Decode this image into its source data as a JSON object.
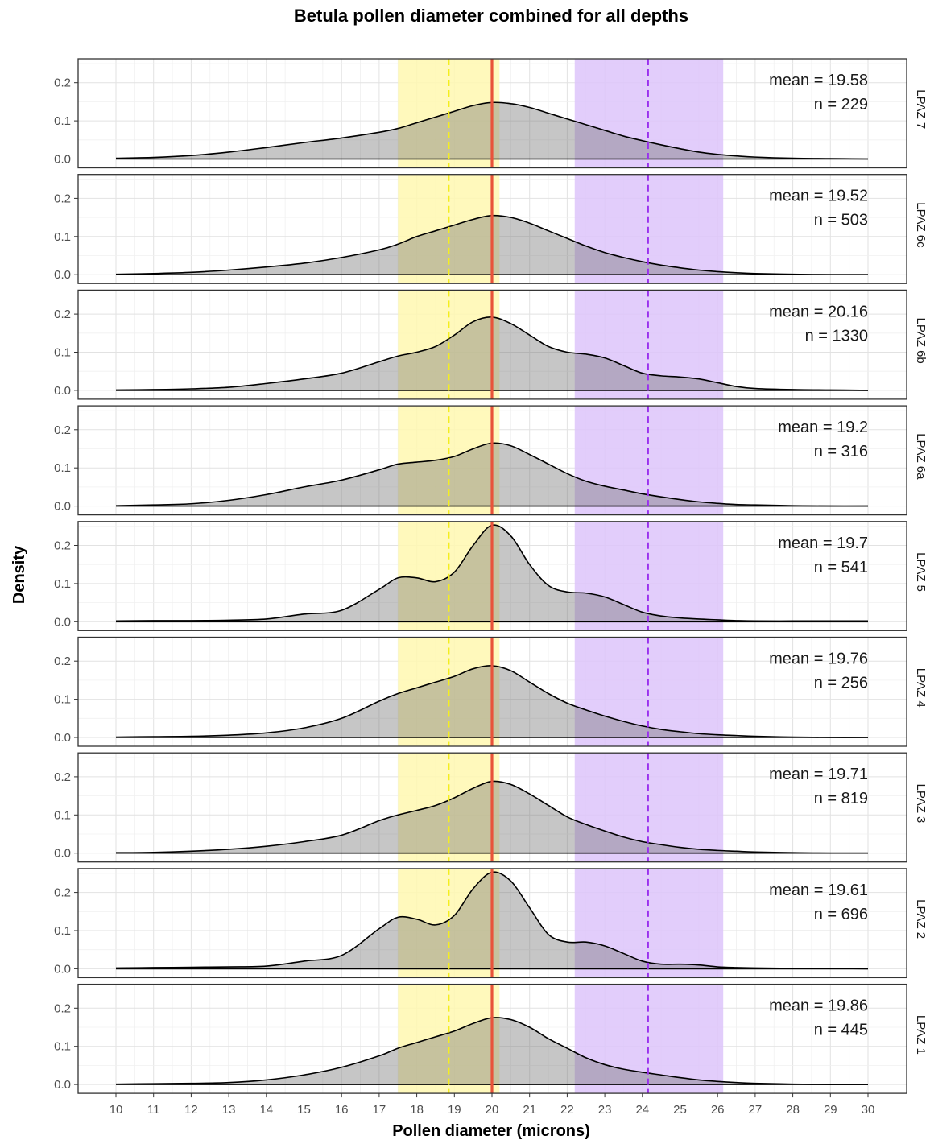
{
  "chart_data": {
    "type": "area",
    "title": "Betula pollen diameter combined for all depths",
    "xlabel": "Pollen diameter (microns)",
    "ylabel": "Density",
    "xlim": [
      10,
      30
    ],
    "ylim": [
      0,
      0.25
    ],
    "x_ticks": [
      10,
      11,
      12,
      13,
      14,
      15,
      16,
      17,
      18,
      19,
      20,
      21,
      22,
      23,
      24,
      25,
      26,
      27,
      28,
      29,
      30
    ],
    "y_ticks": [
      0.0,
      0.1,
      0.2
    ],
    "y_tick_labels": [
      "0.0",
      "0.1",
      "0.2"
    ],
    "grid": true,
    "reference_lines": {
      "red_solid": 20.0,
      "yellow_dashed": 18.85,
      "purple_dashed": 24.15
    },
    "shaded_bands": {
      "yellow": [
        17.5,
        20.2
      ],
      "purple": [
        22.2,
        26.15
      ]
    },
    "annotation_labels": {
      "mean": "mean =",
      "n": "n ="
    },
    "colors": {
      "density_fill": "#c4c4c4",
      "red_line": "#e8533a",
      "yellow_band": "#fff8b0",
      "yellow_line": "#f4ee1e",
      "purple_band": "#ddc4fa",
      "purple_line": "#9a30ee"
    },
    "x": [
      10,
      11,
      12,
      13,
      14,
      15,
      16,
      17,
      17.5,
      18,
      18.5,
      19,
      19.5,
      20,
      20.5,
      21,
      21.5,
      22,
      22.5,
      23,
      23.5,
      24,
      24.5,
      25,
      25.5,
      26,
      26.5,
      27,
      28,
      29,
      30
    ],
    "panels": [
      {
        "label": "LPAZ 7",
        "mean": "19.58",
        "n": "229",
        "y": [
          0.002,
          0.004,
          0.009,
          0.018,
          0.03,
          0.043,
          0.055,
          0.07,
          0.08,
          0.095,
          0.11,
          0.125,
          0.14,
          0.148,
          0.145,
          0.135,
          0.12,
          0.105,
          0.09,
          0.075,
          0.06,
          0.048,
          0.037,
          0.027,
          0.018,
          0.012,
          0.008,
          0.005,
          0.002,
          0.001,
          0.0
        ]
      },
      {
        "label": "LPAZ 6c",
        "mean": "19.52",
        "n": "503",
        "y": [
          0.001,
          0.003,
          0.006,
          0.012,
          0.02,
          0.03,
          0.045,
          0.065,
          0.08,
          0.1,
          0.115,
          0.13,
          0.145,
          0.155,
          0.15,
          0.135,
          0.115,
          0.095,
          0.075,
          0.058,
          0.045,
          0.034,
          0.025,
          0.018,
          0.012,
          0.008,
          0.005,
          0.003,
          0.001,
          0.0,
          0.0
        ]
      },
      {
        "label": "LPAZ 6b",
        "mean": "20.16",
        "n": "1330",
        "y": [
          0.001,
          0.002,
          0.004,
          0.008,
          0.018,
          0.03,
          0.045,
          0.075,
          0.09,
          0.1,
          0.115,
          0.145,
          0.18,
          0.192,
          0.175,
          0.145,
          0.115,
          0.1,
          0.095,
          0.085,
          0.065,
          0.045,
          0.038,
          0.035,
          0.03,
          0.02,
          0.01,
          0.005,
          0.002,
          0.001,
          0.0
        ]
      },
      {
        "label": "LPAZ 6a",
        "mean": "19.2",
        "n": "316",
        "y": [
          0.001,
          0.003,
          0.006,
          0.015,
          0.03,
          0.05,
          0.068,
          0.095,
          0.11,
          0.115,
          0.12,
          0.13,
          0.15,
          0.165,
          0.158,
          0.135,
          0.11,
          0.085,
          0.065,
          0.052,
          0.042,
          0.032,
          0.024,
          0.017,
          0.011,
          0.007,
          0.004,
          0.003,
          0.001,
          0.0,
          0.0
        ]
      },
      {
        "label": "LPAZ 5",
        "mean": "19.7",
        "n": "541",
        "y": [
          0.002,
          0.003,
          0.003,
          0.004,
          0.007,
          0.02,
          0.03,
          0.085,
          0.115,
          0.115,
          0.105,
          0.13,
          0.2,
          0.253,
          0.225,
          0.15,
          0.095,
          0.078,
          0.075,
          0.065,
          0.045,
          0.025,
          0.015,
          0.01,
          0.007,
          0.005,
          0.003,
          0.002,
          0.002,
          0.002,
          0.002
        ]
      },
      {
        "label": "LPAZ 4",
        "mean": "19.76",
        "n": "256",
        "y": [
          0.001,
          0.002,
          0.003,
          0.006,
          0.012,
          0.025,
          0.05,
          0.095,
          0.115,
          0.13,
          0.145,
          0.16,
          0.18,
          0.188,
          0.175,
          0.145,
          0.115,
          0.09,
          0.072,
          0.056,
          0.042,
          0.03,
          0.021,
          0.015,
          0.01,
          0.007,
          0.005,
          0.003,
          0.001,
          0.0,
          0.0
        ]
      },
      {
        "label": "LPAZ 3",
        "mean": "19.71",
        "n": "819",
        "y": [
          0.001,
          0.002,
          0.005,
          0.01,
          0.018,
          0.03,
          0.047,
          0.085,
          0.1,
          0.112,
          0.125,
          0.145,
          0.17,
          0.188,
          0.18,
          0.155,
          0.125,
          0.095,
          0.075,
          0.058,
          0.042,
          0.03,
          0.022,
          0.015,
          0.01,
          0.007,
          0.005,
          0.003,
          0.001,
          0.0,
          0.0
        ]
      },
      {
        "label": "LPAZ 2",
        "mean": "19.61",
        "n": "696",
        "y": [
          0.002,
          0.003,
          0.004,
          0.005,
          0.007,
          0.02,
          0.035,
          0.105,
          0.135,
          0.13,
          0.115,
          0.14,
          0.21,
          0.253,
          0.23,
          0.16,
          0.09,
          0.07,
          0.07,
          0.06,
          0.04,
          0.02,
          0.012,
          0.012,
          0.01,
          0.005,
          0.003,
          0.002,
          0.001,
          0.001,
          0.0
        ]
      },
      {
        "label": "LPAZ 1",
        "mean": "19.86",
        "n": "445",
        "y": [
          0.001,
          0.002,
          0.003,
          0.005,
          0.012,
          0.025,
          0.045,
          0.075,
          0.095,
          0.11,
          0.125,
          0.14,
          0.16,
          0.175,
          0.17,
          0.15,
          0.12,
          0.095,
          0.07,
          0.052,
          0.04,
          0.032,
          0.025,
          0.018,
          0.012,
          0.008,
          0.005,
          0.003,
          0.001,
          0.0,
          0.0
        ]
      }
    ]
  }
}
